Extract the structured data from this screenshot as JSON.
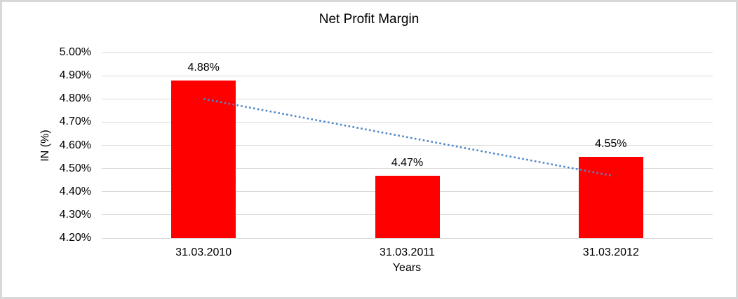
{
  "chart_data": {
    "type": "bar",
    "title": "Net Profit Margin",
    "xlabel": "Years",
    "ylabel": "IN (%)",
    "categories": [
      "31.03.2010",
      "31.03.2011",
      "31.03.2012"
    ],
    "values": [
      4.88,
      4.47,
      4.55
    ],
    "data_labels": [
      "4.88%",
      "4.47%",
      "4.55%"
    ],
    "ylim": [
      4.2,
      5.0
    ],
    "ytick_step": 0.1,
    "ytick_labels": [
      "4.20%",
      "4.30%",
      "4.40%",
      "4.50%",
      "4.60%",
      "4.70%",
      "4.80%",
      "4.90%",
      "5.00%"
    ],
    "grid": true,
    "legend": "none",
    "bar_color": "#ff0000",
    "gridline_color": "#d9d9d9",
    "frame_border_color": "#d8d8d8",
    "text_color": "#000000",
    "trendline": {
      "style": "dotted",
      "color": "#4e87c8",
      "start_value": 4.8,
      "end_value": 4.47
    }
  }
}
